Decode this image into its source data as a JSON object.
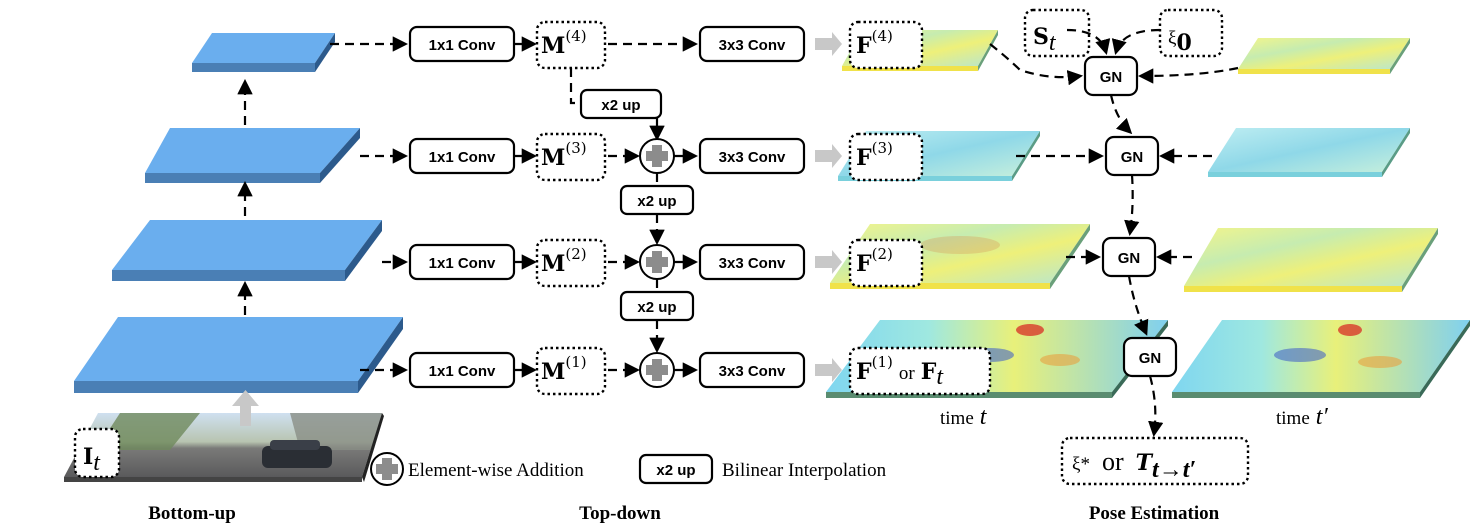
{
  "conv1x1": "1x1 Conv",
  "conv3x3": "3x3 Conv",
  "x2up": "x2 up",
  "gn": "GN",
  "M": "M",
  "F": "F",
  "M_levels": [
    "(4)",
    "(3)",
    "(2)",
    "(1)"
  ],
  "F_levels": [
    "(4)",
    "(3)",
    "(2)",
    "(1)"
  ],
  "F1_or": "or",
  "F1_alt": "F",
  "F1_alt_sub": "t",
  "S": "S",
  "S_sub": "t",
  "xi0": "ξ",
  "xi0_sub": "0",
  "It": "I",
  "It_sub": "t",
  "time_label": "time",
  "time_t": "t",
  "time_tp": "t′",
  "output": {
    "xi_star": "ξ*",
    "or": "or",
    "T": "T",
    "T_sub": "t→t′"
  },
  "legend": {
    "addition": "Element-wise Addition",
    "x2up": "x2 up",
    "bilinear": "Bilinear Interpolation"
  },
  "captions": {
    "bottom_up": "Bottom-up",
    "top_down": "Top-down",
    "pose": "Pose Estimation"
  },
  "colors": {
    "layer_top": "#6aaeee",
    "layer_side": "#3a6fa8",
    "feature_yellow": "#eef07a",
    "feature_cyan": "#a9e4ee"
  }
}
